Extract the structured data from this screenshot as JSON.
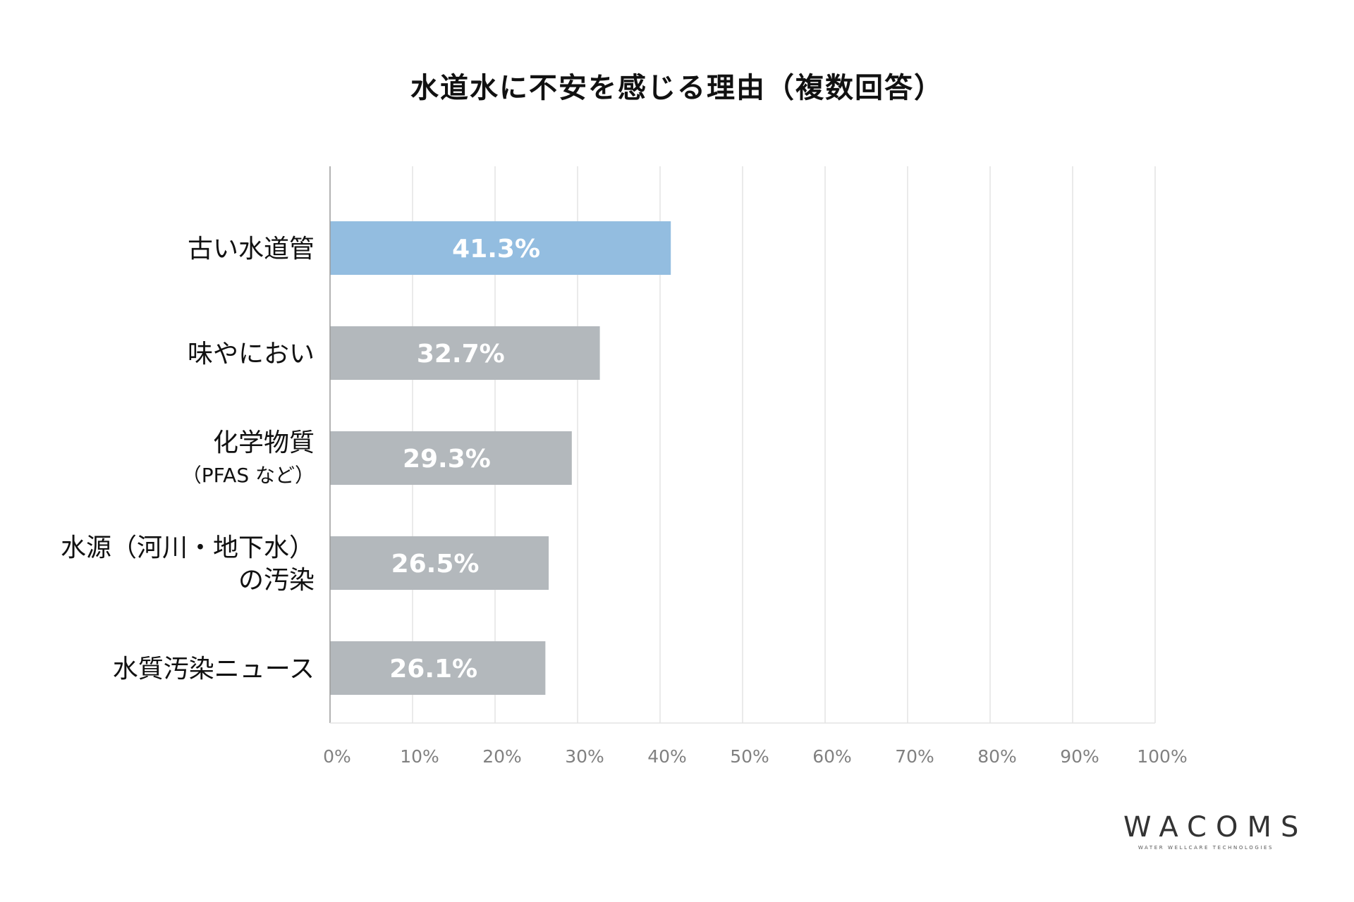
{
  "chart_data": {
    "type": "bar",
    "orientation": "horizontal",
    "title": "水道水に不安を感じる理由（複数回答）",
    "categories": [
      [
        "古い水道管"
      ],
      [
        "味やにおい"
      ],
      [
        "化学物質",
        "（PFAS など）"
      ],
      [
        "水源（河川・地下水）",
        "の汚染"
      ],
      [
        "水質汚染ニュース"
      ]
    ],
    "values": [
      41.3,
      32.7,
      29.3,
      26.5,
      26.1
    ],
    "value_labels": [
      "41.3%",
      "32.7%",
      "29.3%",
      "26.5%",
      "26.1%"
    ],
    "bar_colors": [
      "#93bde0",
      "#b3b8bc",
      "#b3b8bc",
      "#b3b8bc",
      "#b3b8bc"
    ],
    "value_label_color": "#ffffff",
    "xlim": [
      0,
      100
    ],
    "x_ticks": [
      0,
      10,
      20,
      30,
      40,
      50,
      60,
      70,
      80,
      90,
      100
    ],
    "x_tick_labels": [
      "0%",
      "10%",
      "20%",
      "30%",
      "40%",
      "50%",
      "60%",
      "70%",
      "80%",
      "90%",
      "100%"
    ],
    "grid": true,
    "grid_color": "#e3e3e3",
    "axis_color": "#9a9a9a",
    "tick_label_color": "#808080",
    "category_label_color": "#111111"
  },
  "logo": {
    "name": "WACOMS",
    "tagline": "WATER WELLCARE TECHNOLOGIES"
  }
}
